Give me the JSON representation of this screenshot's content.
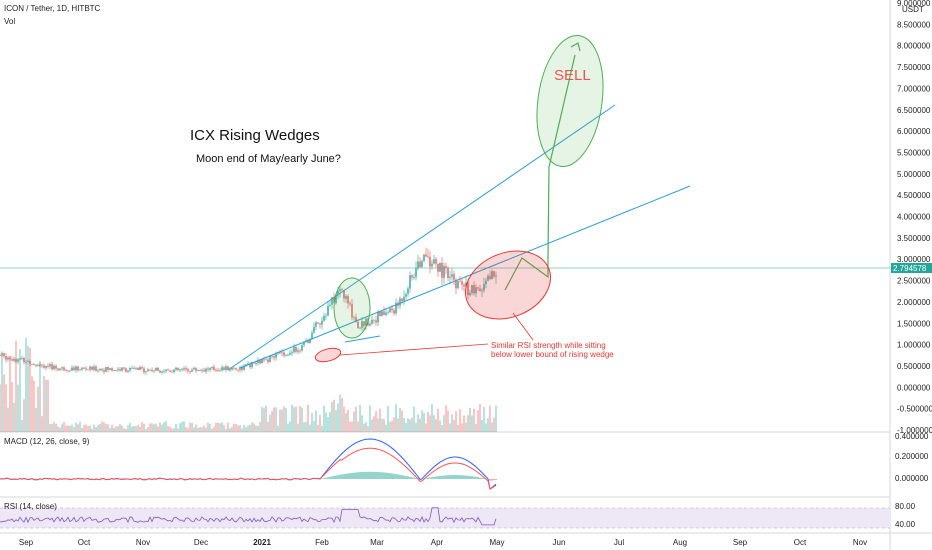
{
  "header": {
    "symbol": "ICON / Tether, 1D, HITBTC",
    "volume_label": "Vol",
    "currency": "USDT"
  },
  "price_tag": "2.794578",
  "annotations": {
    "title": "ICX Rising Wedges",
    "subtitle": "Moon end of May/early June?",
    "sell": "SELL",
    "note_line1": "Similar RSI strength while sitting",
    "note_line2": "below lower bound of rising wedge"
  },
  "macd": {
    "label": "MACD (12, 26, close, 9)",
    "ticks": [
      "0.400000",
      "0.200000",
      "0.000000"
    ]
  },
  "rsi": {
    "label": "RSI (14, close)",
    "ticks": [
      "80.00",
      "40.00"
    ]
  },
  "colors": {
    "up": "#26a69a",
    "down": "#ef5350",
    "trendline": "#2a9fd6",
    "green_ellipse": "#4caf50",
    "red_ellipse": "#e53935",
    "macd_line": "#2962ff",
    "signal_line": "#ff5252",
    "rsi_line": "#7e57c2",
    "rsi_band": "#ede7f6"
  },
  "chart_data": {
    "type": "candlestick",
    "title": "ICON / Tether, 1D, HITBTC",
    "y_ticks": [
      "9.000000",
      "8.500000",
      "8.000000",
      "7.500000",
      "7.000000",
      "6.500000",
      "6.000000",
      "5.500000",
      "5.000000",
      "4.500000",
      "4.000000",
      "3.500000",
      "3.000000",
      "2.500000",
      "2.000000",
      "1.500000",
      "1.000000",
      "0.500000",
      "0.000000",
      "-0.500000",
      "-1.000000"
    ],
    "x_ticks": [
      "Sep",
      "Oct",
      "Nov",
      "Dec",
      "2021",
      "Feb",
      "Mar",
      "Apr",
      "May",
      "Jun",
      "Jul",
      "Aug",
      "Sep",
      "Oct",
      "Nov"
    ],
    "ylim": [
      -1.0,
      9.0
    ],
    "approx_close_path": [
      {
        "date": "2020-09-01",
        "close": 0.75
      },
      {
        "date": "2020-10-01",
        "close": 0.44
      },
      {
        "date": "2020-11-01",
        "close": 0.42
      },
      {
        "date": "2020-12-01",
        "close": 0.4
      },
      {
        "date": "2021-01-01",
        "close": 0.45
      },
      {
        "date": "2021-02-01",
        "close": 0.95
      },
      {
        "date": "2021-02-20",
        "close": 2.3
      },
      {
        "date": "2021-03-01",
        "close": 1.45
      },
      {
        "date": "2021-03-20",
        "close": 1.85
      },
      {
        "date": "2021-04-03",
        "close": 3.1
      },
      {
        "date": "2021-04-20",
        "close": 2.4
      },
      {
        "date": "2021-05-01",
        "close": 2.2
      },
      {
        "date": "2021-05-10",
        "close": 2.79
      }
    ]
  }
}
